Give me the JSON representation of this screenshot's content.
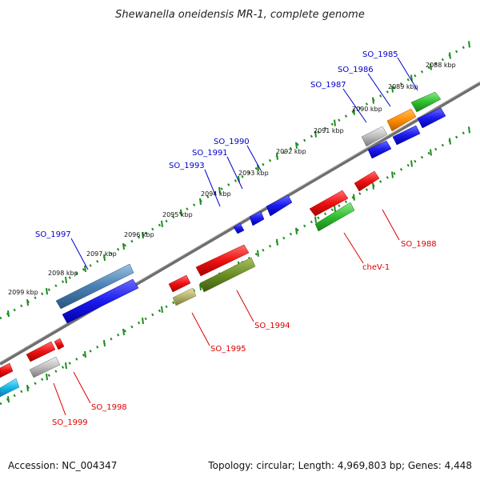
{
  "title": "Shewanella oneidensis MR-1, complete genome",
  "footer": {
    "accession": "Accession: NC_004347",
    "summary": "Topology: circular; Length: 4,969,803 bp; Genes: 4,448"
  },
  "scale_labels": [
    "2088 kbp",
    "2089 kbp",
    "2090 kbp",
    "2091 kbp",
    "2092 kbp",
    "2093 kbp",
    "2094 kbp",
    "2095 kbp",
    "2096 kbp",
    "2097 kbp",
    "2098 kbp",
    "2099 kbp"
  ],
  "forward_gene_labels": [
    "SO_1985",
    "SO_1986",
    "SO_1987",
    "SO_1990",
    "SO_1991",
    "SO_1993",
    "SO_1997"
  ],
  "reverse_gene_labels": [
    "SO_1988",
    "cheV-1",
    "SO_1994",
    "SO_1995",
    "SO_1998",
    "SO_1999"
  ],
  "colors": {
    "forward_label": "#0000cc",
    "reverse_label": "#dd0000",
    "backbone": "#808080",
    "ruler_dots": "#1f8c1f",
    "blue": "#1a1aee",
    "red": "#ee1111",
    "green": "#2fbf2f",
    "orange": "#ff8c00",
    "grey": "#bdbdbd",
    "steel": "#4a7fb3",
    "olive": "#6b8e23",
    "khaki": "#b5b26b",
    "cyan": "#18b7e8"
  }
}
